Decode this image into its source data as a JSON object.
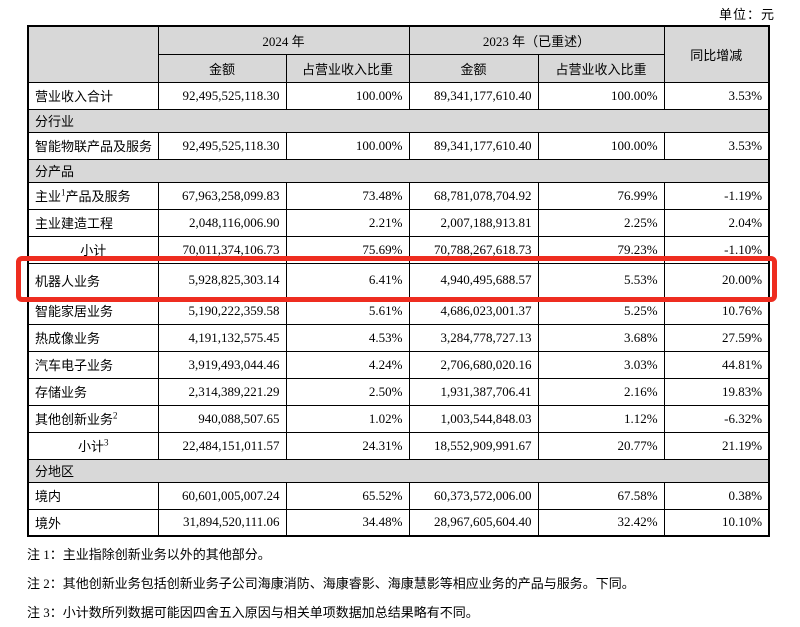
{
  "unit_label": "单位：元",
  "colors": {
    "header_gray": "#d8d8d8",
    "highlight_red": "#ee2d20",
    "border": "#000000"
  },
  "table": {
    "header": {
      "group_2024": "2024 年",
      "group_2023": "2023 年（已重述）",
      "amount": "金额",
      "pct_of_revenue": "占营业收入比重",
      "yoy_change": "同比增减"
    },
    "rows": [
      {
        "type": "data",
        "label": "营业收入合计",
        "a2024": "92,495,525,118.30",
        "p2024": "100.00%",
        "a2023": "89,341,177,610.40",
        "p2023": "100.00%",
        "yoy": "3.53%"
      },
      {
        "type": "section",
        "label": "分行业"
      },
      {
        "type": "data",
        "label": "智能物联产品及服务",
        "a2024": "92,495,525,118.30",
        "p2024": "100.00%",
        "a2023": "89,341,177,610.40",
        "p2023": "100.00%",
        "yoy": "3.53%"
      },
      {
        "type": "section",
        "label": "分产品"
      },
      {
        "type": "data",
        "label": "主业",
        "sup": "1",
        "label_after": "产品及服务",
        "a2024": "67,963,258,099.83",
        "p2024": "73.48%",
        "a2023": "68,781,078,704.92",
        "p2023": "76.99%",
        "yoy": "-1.19%"
      },
      {
        "type": "data",
        "label": "主业建造工程",
        "a2024": "2,048,116,006.90",
        "p2024": "2.21%",
        "a2023": "2,007,188,913.81",
        "p2023": "2.25%",
        "yoy": "2.04%"
      },
      {
        "type": "data",
        "label": "小计",
        "center": true,
        "a2024": "70,011,374,106.73",
        "p2024": "75.69%",
        "a2023": "70,788,267,618.73",
        "p2023": "79.23%",
        "yoy": "-1.10%"
      },
      {
        "type": "data",
        "label": "机器人业务",
        "highlight": true,
        "a2024": "5,928,825,303.14",
        "p2024": "6.41%",
        "a2023": "4,940,495,688.57",
        "p2023": "5.53%",
        "yoy": "20.00%"
      },
      {
        "type": "data",
        "label": "智能家居业务",
        "a2024": "5,190,222,359.58",
        "p2024": "5.61%",
        "a2023": "4,686,023,001.37",
        "p2023": "5.25%",
        "yoy": "10.76%"
      },
      {
        "type": "data",
        "label": "热成像业务",
        "a2024": "4,191,132,575.45",
        "p2024": "4.53%",
        "a2023": "3,284,778,727.13",
        "p2023": "3.68%",
        "yoy": "27.59%"
      },
      {
        "type": "data",
        "label": "汽车电子业务",
        "a2024": "3,919,493,044.46",
        "p2024": "4.24%",
        "a2023": "2,706,680,020.16",
        "p2023": "3.03%",
        "yoy": "44.81%"
      },
      {
        "type": "data",
        "label": "存储业务",
        "a2024": "2,314,389,221.29",
        "p2024": "2.50%",
        "a2023": "1,931,387,706.41",
        "p2023": "2.16%",
        "yoy": "19.83%"
      },
      {
        "type": "data",
        "label": "其他创新业务",
        "sup": "2",
        "label_after": "",
        "a2024": "940,088,507.65",
        "p2024": "1.02%",
        "a2023": "1,003,544,848.03",
        "p2023": "1.12%",
        "yoy": "-6.32%"
      },
      {
        "type": "data",
        "label": "小计",
        "sup": "3",
        "label_after": "",
        "center": true,
        "a2024": "22,484,151,011.57",
        "p2024": "24.31%",
        "a2023": "18,552,909,991.67",
        "p2023": "20.77%",
        "yoy": "21.19%"
      },
      {
        "type": "section",
        "label": "分地区"
      },
      {
        "type": "data",
        "label": "境内",
        "a2024": "60,601,005,007.24",
        "p2024": "65.52%",
        "a2023": "60,373,572,006.00",
        "p2023": "67.58%",
        "yoy": "0.38%"
      },
      {
        "type": "data",
        "label": "境外",
        "a2024": "31,894,520,111.06",
        "p2024": "34.48%",
        "a2023": "28,967,605,604.40",
        "p2023": "32.42%",
        "yoy": "10.10%"
      }
    ]
  },
  "notes": [
    "注 1：主业指除创新业务以外的其他部分。",
    "注 2：其他创新业务包括创新业务子公司海康消防、海康睿影、海康慧影等相应业务的产品与服务。下同。",
    "注 3：小计数所列数据可能因四舍五入原因与相关单项数据加总结果略有不同。"
  ]
}
